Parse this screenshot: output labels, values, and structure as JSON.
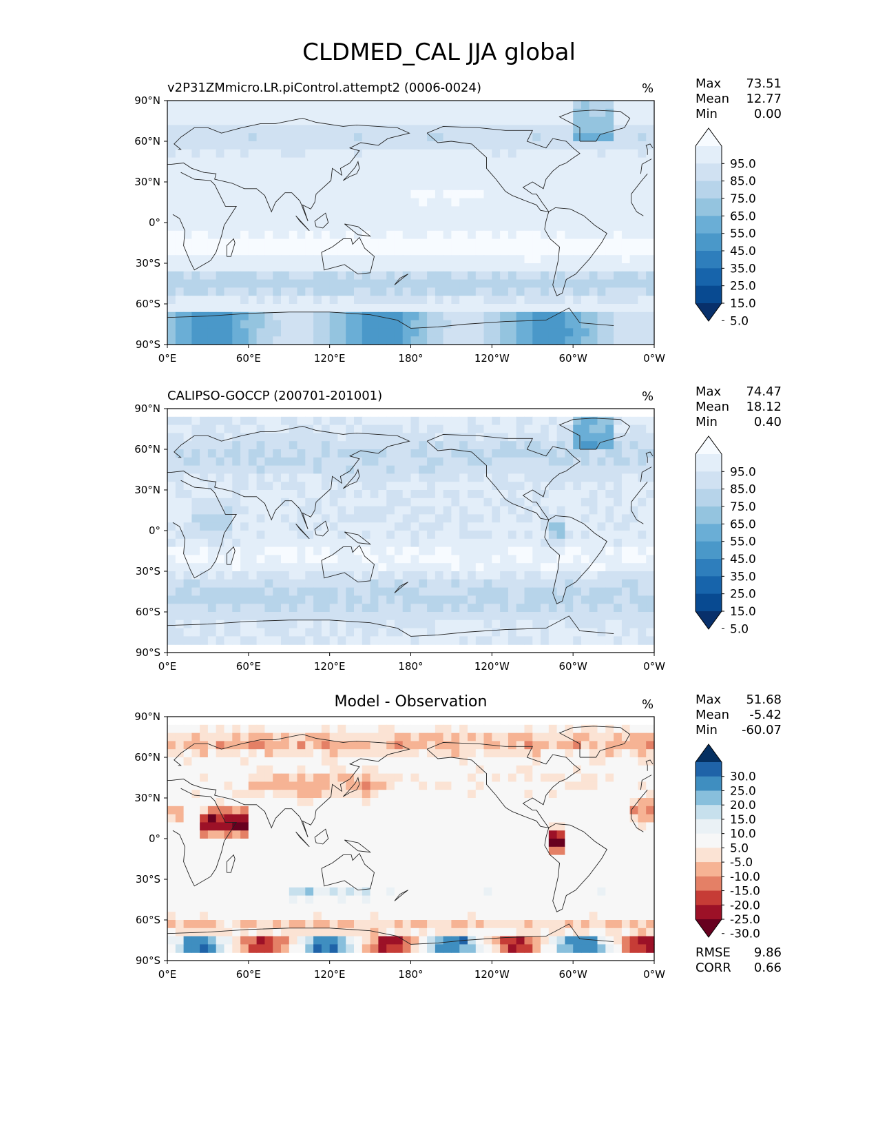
{
  "title": "CLDMED_CAL JJA global",
  "unit": "%",
  "x_ticks": [
    "0°E",
    "60°E",
    "120°E",
    "180°",
    "120°W",
    "60°W",
    "0°W"
  ],
  "y_ticks": [
    "90°N",
    "60°N",
    "30°N",
    "0°",
    "30°S",
    "60°S",
    "90°S"
  ],
  "panels": [
    {
      "title": "v2P31ZMmicro.LR.piControl.attempt2 (0006-0024)",
      "stats": [
        {
          "label": "Max",
          "value": "73.51"
        },
        {
          "label": "Mean",
          "value": "12.77"
        },
        {
          "label": "Min",
          "value": "0.00"
        }
      ],
      "colorbar_labels": [
        "95.0",
        "85.0",
        "75.0",
        "65.0",
        "55.0",
        "45.0",
        "35.0",
        "25.0",
        "15.0",
        "5.0"
      ]
    },
    {
      "title": "CALIPSO-GOCCP (200701-201001)",
      "stats": [
        {
          "label": "Max",
          "value": "74.47"
        },
        {
          "label": "Mean",
          "value": "18.12"
        },
        {
          "label": "Min",
          "value": "0.40"
        }
      ],
      "colorbar_labels": [
        "95.0",
        "85.0",
        "75.0",
        "65.0",
        "55.0",
        "45.0",
        "35.0",
        "25.0",
        "15.0",
        "5.0"
      ]
    },
    {
      "title": "Model - Observation",
      "stats": [
        {
          "label": "Max",
          "value": "51.68"
        },
        {
          "label": "Mean",
          "value": "-5.42"
        },
        {
          "label": "Min",
          "value": "-60.07"
        }
      ],
      "colorbar_labels": [
        "30.0",
        "25.0",
        "20.0",
        "15.0",
        "10.0",
        "5.0",
        "-5.0",
        "-10.0",
        "-15.0",
        "-20.0",
        "-25.0",
        "-30.0"
      ],
      "metrics": [
        {
          "label": "RMSE",
          "value": "9.86"
        },
        {
          "label": "CORR",
          "value": "0.66"
        }
      ]
    }
  ],
  "colors": {
    "blues": [
      "#f7fbff",
      "#e3eef9",
      "#d0e1f2",
      "#b7d4ea",
      "#94c4df",
      "#6aaed6",
      "#4a98c9",
      "#2e7ebc",
      "#1764ab",
      "#084a91",
      "#08306b"
    ],
    "diverging": [
      "#053061",
      "#1f63a8",
      "#3f8ec0",
      "#88bfdc",
      "#c7e0ed",
      "#eaf1f5",
      "#f7f7f7",
      "#fbe3d4",
      "#f6b394",
      "#e48066",
      "#c63c36",
      "#9c1127",
      "#67001f"
    ]
  }
}
